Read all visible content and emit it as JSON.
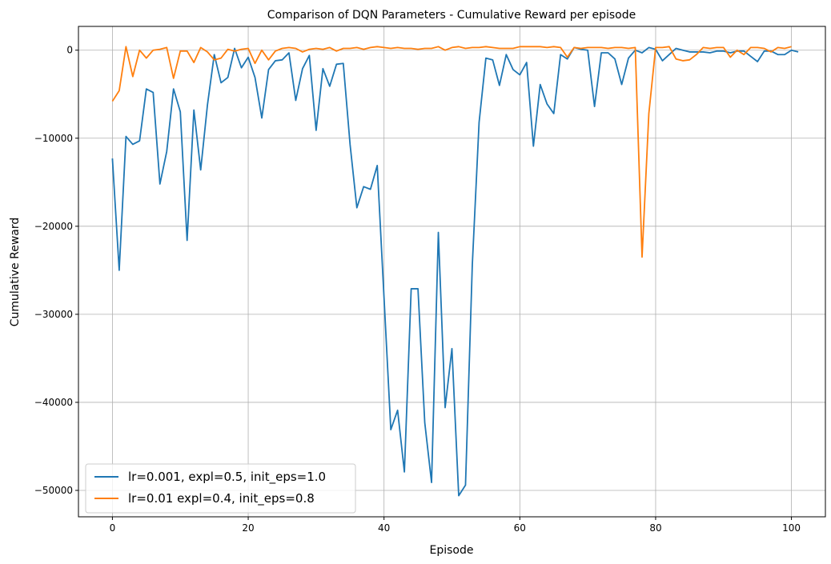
{
  "chart_data": {
    "type": "line",
    "title": "Comparison of DQN Parameters - Cumulative Reward per episode",
    "xlabel": "Episode",
    "ylabel": "Cumulative Reward",
    "xlim": [
      -5,
      105
    ],
    "ylim": [
      -53000,
      2700
    ],
    "x_ticks": [
      0,
      20,
      40,
      60,
      80,
      100
    ],
    "x_tick_labels": [
      "0",
      "20",
      "40",
      "60",
      "80",
      "100"
    ],
    "y_ticks": [
      0,
      -10000,
      -20000,
      -30000,
      -40000,
      -50000
    ],
    "y_tick_labels": [
      "0",
      "−10000",
      "−20000",
      "−30000",
      "−40000",
      "−50000"
    ],
    "grid": true,
    "legend_position": "bottom-left",
    "series": [
      {
        "name": "lr=0.001, expl=0.5, init_eps=1.0",
        "color": "#1f77b4",
        "values": [
          -12300,
          -25000,
          -9800,
          -10700,
          -10300,
          -4400,
          -4800,
          -15200,
          -11500,
          -4400,
          -7000,
          -21600,
          -6800,
          -13600,
          -6200,
          -500,
          -3700,
          -3100,
          200,
          -2000,
          -800,
          -3100,
          -7700,
          -2200,
          -1200,
          -1100,
          -300,
          -5700,
          -2100,
          -600,
          -9100,
          -2100,
          -4100,
          -1600,
          -1500,
          -10700,
          -17900,
          -15500,
          -15800,
          -13100,
          -28100,
          -43100,
          -40900,
          -47900,
          -27100,
          -27100,
          -42300,
          -49100,
          -20700,
          -40600,
          -33900,
          -50600,
          -49400,
          -24400,
          -8200,
          -900,
          -1100,
          -4000,
          -500,
          -2200,
          -2800,
          -1400,
          -10900,
          -3900,
          -6100,
          -7200,
          -500,
          -1000,
          300,
          100,
          0,
          -6400,
          -300,
          -300,
          -1000,
          -3900,
          -900,
          0,
          -300,
          300,
          100,
          -1200,
          -500,
          200,
          0,
          -200,
          -200,
          -200,
          -300,
          -100,
          -100,
          -300,
          -100,
          -100,
          -700,
          -1300,
          -100,
          -100,
          -500,
          -500,
          0,
          -200
        ]
      },
      {
        "name": "lr=0.01 expl=0.4, init_eps=0.8",
        "color": "#ff7f0e",
        "values": [
          -5800,
          -4600,
          400,
          -3000,
          0,
          -900,
          0,
          100,
          300,
          -3200,
          -100,
          -100,
          -1400,
          300,
          -200,
          -1100,
          -900,
          100,
          -100,
          100,
          200,
          -1500,
          0,
          -1100,
          -100,
          200,
          300,
          200,
          -200,
          100,
          200,
          100,
          300,
          -100,
          200,
          200,
          300,
          100,
          300,
          400,
          300,
          200,
          300,
          200,
          200,
          100,
          200,
          200,
          400,
          0,
          300,
          400,
          200,
          300,
          300,
          400,
          300,
          200,
          200,
          200,
          400,
          400,
          400,
          400,
          300,
          400,
          300,
          -800,
          300,
          200,
          300,
          300,
          300,
          200,
          300,
          300,
          200,
          300,
          -23500,
          -7200,
          300,
          300,
          400,
          -1000,
          -1200,
          -1100,
          -500,
          300,
          200,
          300,
          300,
          -800,
          0,
          -500,
          300,
          300,
          200,
          -200,
          300,
          200,
          400
        ]
      }
    ]
  }
}
